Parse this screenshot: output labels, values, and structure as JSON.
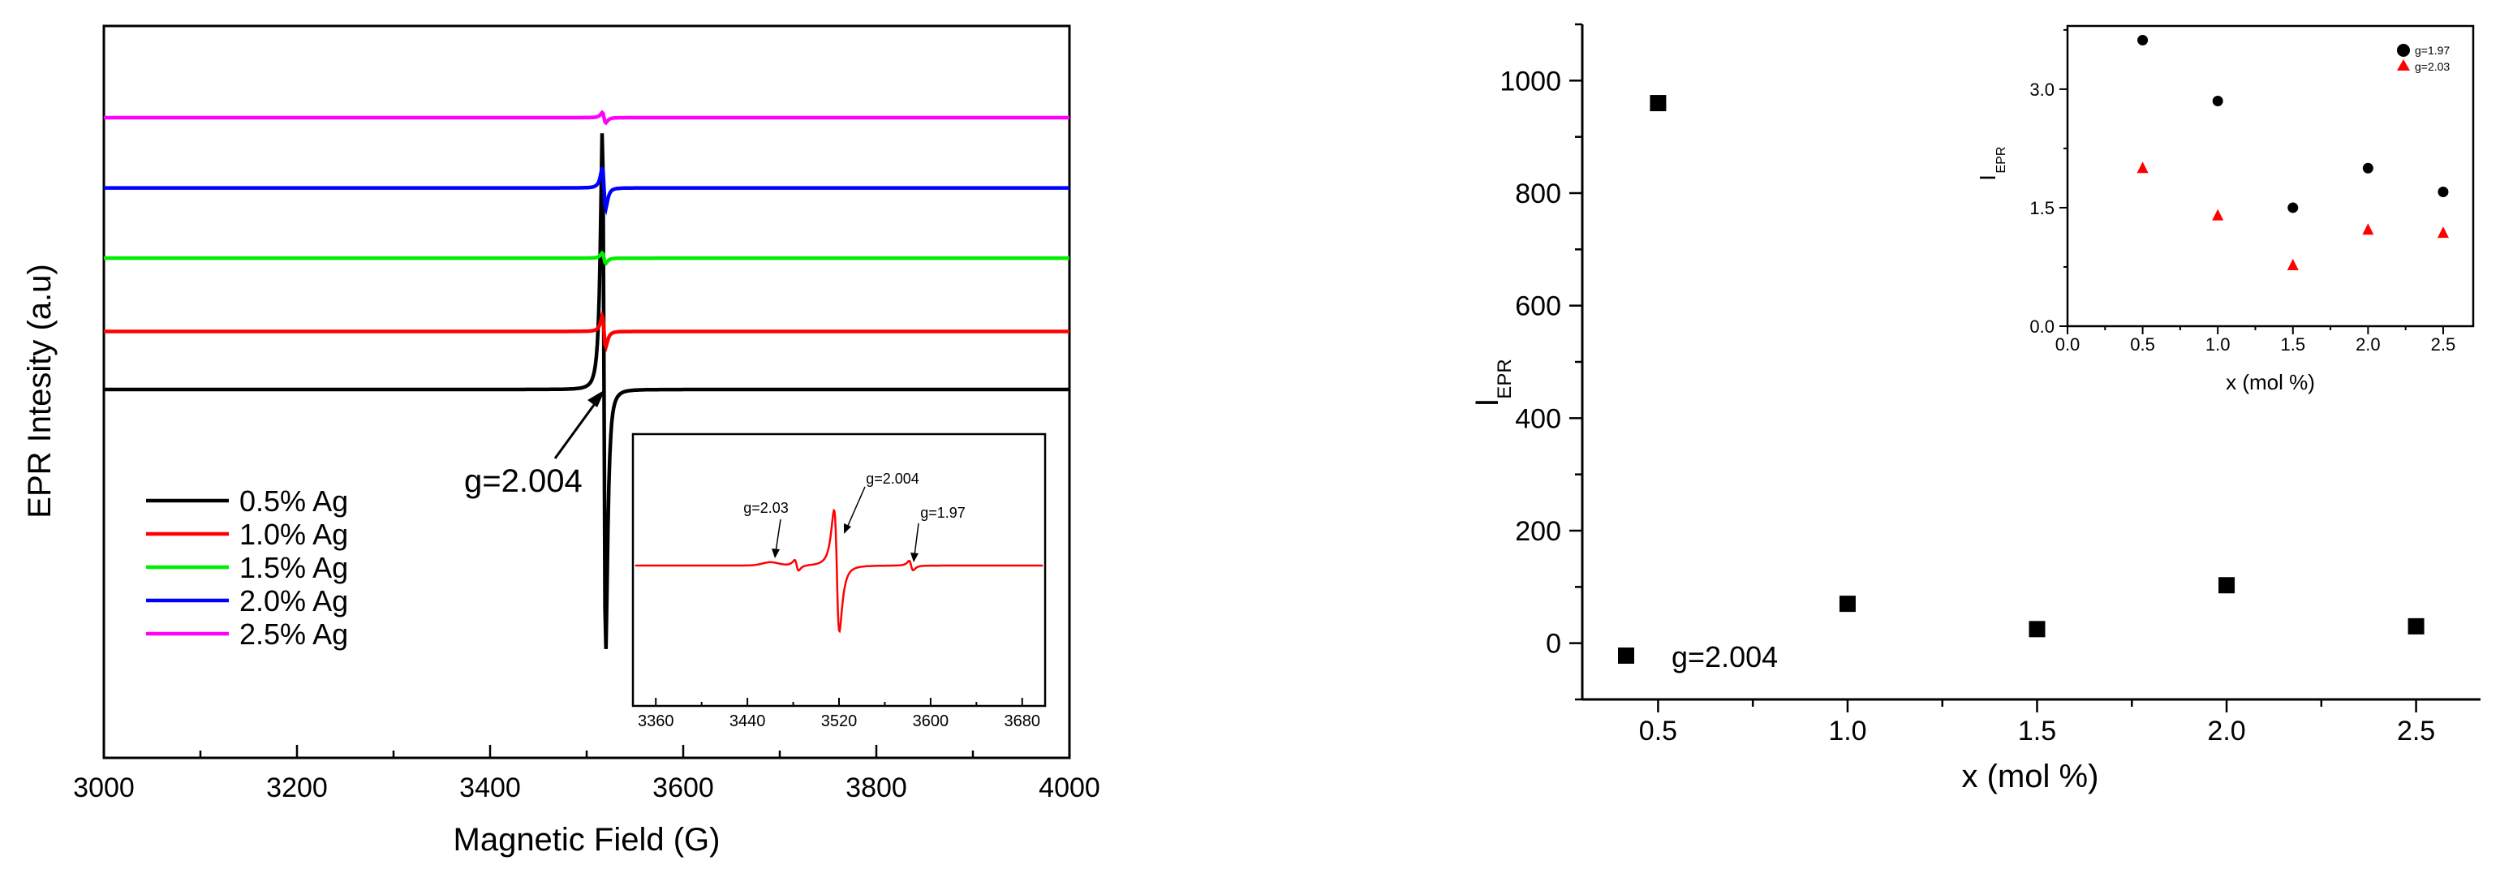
{
  "chart_data": [
    {
      "type": "line",
      "xlabel": "Magnetic Field  (G)",
      "ylabel": "EPR Intesity  (a.u)",
      "xlim": [
        3000,
        4000
      ],
      "x_ticks": [
        "3000",
        "3200",
        "3400",
        "3600",
        "3800",
        "4000"
      ],
      "grid": false,
      "legend_position": "bottom-left",
      "annotation": "g=2.004",
      "line_center_field": 3518,
      "series": [
        {
          "name": "0.5% Ag",
          "color": "#000000",
          "baseline": 0.0,
          "amplitude": 1.0
        },
        {
          "name": "1.0% Ag",
          "color": "#ff0000",
          "baseline": 0.19,
          "amplitude": 0.06
        },
        {
          "name": "1.5% Ag",
          "color": "#00ee00",
          "baseline": 0.43,
          "amplitude": 0.02
        },
        {
          "name": "2.0% Ag",
          "color": "#0000ff",
          "baseline": 0.66,
          "amplitude": 0.08
        },
        {
          "name": "2.5% Ag",
          "color": "#ff00ff",
          "baseline": 0.89,
          "amplitude": 0.02
        }
      ],
      "inset": {
        "type": "line",
        "xlim": [
          3340,
          3700
        ],
        "x_ticks": [
          "3360",
          "3440",
          "3520",
          "3600",
          "3680"
        ],
        "color": "#ff0000",
        "annotations": [
          "g=2.03",
          "g=2.004",
          "g=1.97"
        ],
        "peak_fields": [
          3483,
          3518,
          3583
        ]
      }
    },
    {
      "type": "scatter",
      "xlabel": "x  (mol %)",
      "ylabel": "I",
      "ylabel_sub": "EPR",
      "xlim": [
        0.3,
        2.67
      ],
      "ylim": [
        -100,
        1100
      ],
      "x_ticks": [
        "0.5",
        "1.0",
        "1.5",
        "2.0",
        "2.5"
      ],
      "y_ticks": [
        "0",
        "200",
        "400",
        "600",
        "800",
        "1000"
      ],
      "legend_position": "bottom-left",
      "series": [
        {
          "name": "g=2.004",
          "marker": "square",
          "color": "#000000",
          "x": [
            0.5,
            1.0,
            1.5,
            2.0,
            2.5
          ],
          "y": [
            960,
            70,
            25,
            103,
            30
          ]
        }
      ],
      "inset": {
        "type": "scatter",
        "xlabel": "x  (mol %)",
        "ylabel": "I",
        "ylabel_sub": "EPR",
        "xlim": [
          0.0,
          2.7
        ],
        "ylim": [
          0.0,
          3.8
        ],
        "x_ticks": [
          "0.0",
          "0.5",
          "1.0",
          "1.5",
          "2.0",
          "2.5"
        ],
        "y_ticks": [
          "0.0",
          "1.5",
          "3.0"
        ],
        "legend_position": "top-right",
        "series": [
          {
            "name": "g=1.97",
            "marker": "circle",
            "color": "#000000",
            "x": [
              0.5,
              1.0,
              1.5,
              2.0,
              2.5
            ],
            "y": [
              3.62,
              2.85,
              1.5,
              2.0,
              1.7
            ]
          },
          {
            "name": "g=2.03",
            "marker": "triangle",
            "color": "#ff0000",
            "x": [
              0.5,
              1.0,
              1.5,
              2.0,
              2.5
            ],
            "y": [
              2.0,
              1.4,
              0.77,
              1.22,
              1.18
            ]
          }
        ]
      }
    }
  ]
}
